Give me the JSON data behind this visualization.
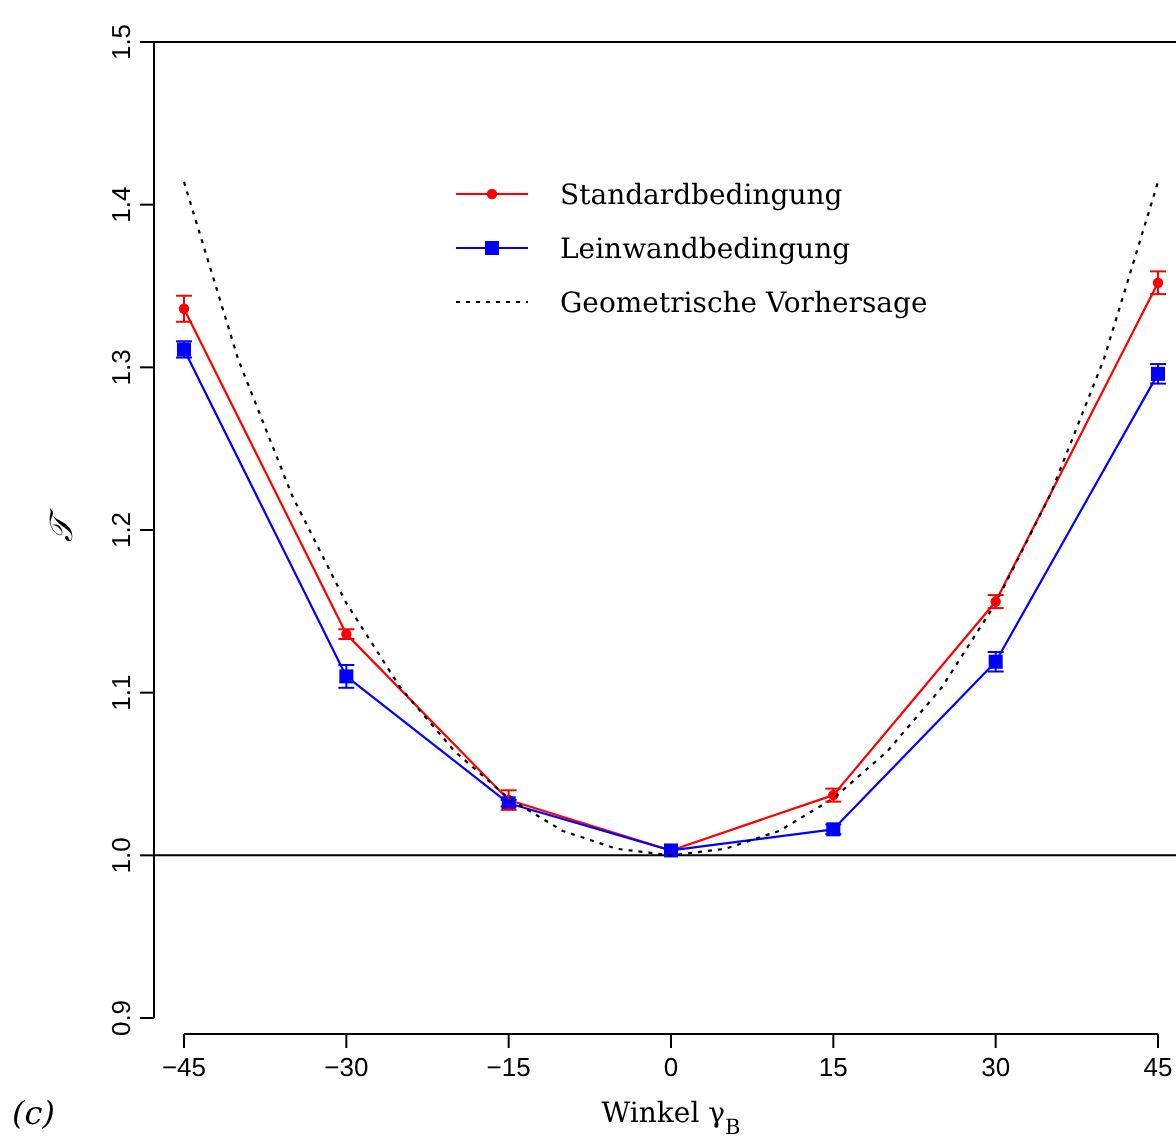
{
  "chart_data": {
    "type": "line",
    "xlabel": "Winkel γ$_{B}$",
    "ylabel": "𝒯",
    "xlim": [
      -45,
      45
    ],
    "ylim": [
      0.9,
      1.5
    ],
    "xticks": [
      {
        "value": -45,
        "label": "−45"
      },
      {
        "value": -30,
        "label": "−30"
      },
      {
        "value": -15,
        "label": "−15"
      },
      0,
      15,
      30,
      45
    ],
    "yticks": [
      {
        "value": 0.9,
        "label": "0.9"
      },
      {
        "value": 1.0,
        "label": "1.0"
      },
      {
        "value": 1.1,
        "label": "1.1"
      },
      {
        "value": 1.2,
        "label": "1.2"
      },
      {
        "value": 1.3,
        "label": "1.3"
      },
      {
        "value": 1.4,
        "label": "1.4"
      },
      {
        "value": 1.5,
        "label": "1.5"
      }
    ],
    "x": [
      -45,
      -30,
      -15,
      0,
      15,
      30,
      45
    ],
    "series": [
      {
        "name": "Standardbedingung",
        "color": "#ff0000",
        "marker": "circle",
        "line_style": "solid",
        "values": [
          1.336,
          1.136,
          1.034,
          1.003,
          1.037,
          1.156,
          1.352
        ],
        "errors": [
          0.008,
          0.003,
          0.006,
          null,
          0.004,
          0.004,
          0.007
        ]
      },
      {
        "name": "Leinwandbedingung",
        "color": "#0000ff",
        "marker": "square",
        "line_style": "solid",
        "values": [
          1.311,
          1.11,
          1.032,
          1.003,
          1.016,
          1.119,
          1.296
        ],
        "errors": [
          0.005,
          0.007,
          0.002,
          null,
          0.003,
          0.006,
          0.006
        ]
      },
      {
        "name": "Geometrische Vorhersage",
        "color": "#000000",
        "marker": "none",
        "line_style": "dotted",
        "x": [
          -45,
          -40,
          -35,
          -30,
          -25,
          -20,
          -15,
          -10,
          -5,
          0,
          5,
          10,
          15,
          20,
          25,
          30,
          35,
          40,
          45
        ],
        "values": [
          1.414,
          1.305,
          1.221,
          1.155,
          1.103,
          1.064,
          1.035,
          1.015,
          1.004,
          1.0,
          1.004,
          1.015,
          1.035,
          1.064,
          1.103,
          1.155,
          1.221,
          1.305,
          1.414
        ]
      }
    ],
    "ref_lines": [
      {
        "axis": "y",
        "value": 1.0,
        "color": "#000000"
      }
    ],
    "legend": "top",
    "annotations": [
      "(c)"
    ]
  }
}
